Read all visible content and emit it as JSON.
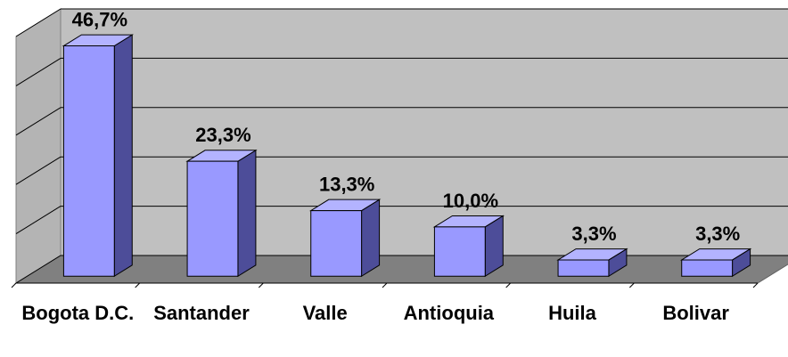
{
  "chart_data": {
    "type": "bar3d",
    "categories": [
      "Bogota D.C.",
      "Santander",
      "Valle",
      "Antioquia",
      "Huila",
      "Bolivar"
    ],
    "values": [
      46.7,
      23.3,
      13.3,
      10.0,
      3.3,
      3.3
    ],
    "value_labels": [
      "46,7%",
      "23,3%",
      "13,3%",
      "10,0%",
      "3,3%",
      "3,3%"
    ],
    "color": "#9999ff",
    "ylim": [
      0,
      50
    ],
    "yticks": [
      0,
      10,
      20,
      30,
      40,
      50
    ],
    "grid": true
  }
}
